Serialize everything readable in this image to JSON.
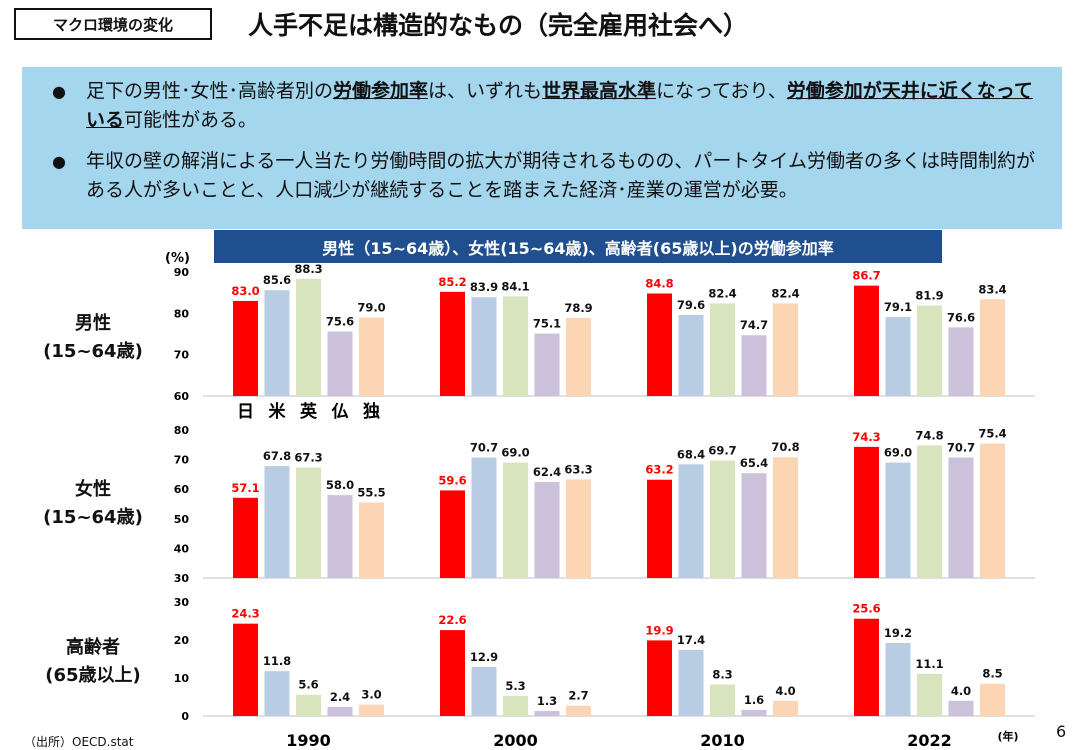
{
  "header": {
    "tag": "マクロ環境の変化",
    "title": "人手不足は構造的なもの（完全雇用社会へ）"
  },
  "summary": {
    "bullet1": {
      "t1": "足下の男性･女性･高齢者別の",
      "b1": "労働参加率",
      "t2": "は、いずれも",
      "b2": "世界最高水準",
      "t3": "になっており、",
      "b3": "労働参加が天井に近くなっている",
      "t4": "可能性がある。"
    },
    "bullet2": "年収の壁の解消による一人当たり労働時間の拡大が期待されるものの、パートタイム労働者の多くは時間制約がある人が多いことと、人口減少が継続することを踏まえた経済･産業の運営が必要。"
  },
  "footer": {
    "source": "（出所）OECD.stat",
    "page": "6"
  },
  "chart_data": {
    "type": "bar",
    "title": "男性（15~64歳）、女性(15~64歳)、高齢者(65歳以上)の労働参加率",
    "ylabel": "(%)",
    "xunit": "(年)",
    "categories": [
      "1990",
      "2000",
      "2010",
      "2022"
    ],
    "country_labels": [
      "日",
      "米",
      "英",
      "仏",
      "独"
    ],
    "colors": [
      "#ff0000",
      "#b8cce4",
      "#d7e4bd",
      "#ccc1da",
      "#fcd5b5"
    ],
    "panels": [
      {
        "label": "男性\n(15~64歳)",
        "ylim": [
          60,
          90
        ],
        "ticks": [
          60,
          70,
          80,
          90
        ],
        "values": [
          [
            83.0,
            85.6,
            88.3,
            75.6,
            79.0
          ],
          [
            85.2,
            83.9,
            84.1,
            75.1,
            78.9
          ],
          [
            84.8,
            79.6,
            82.4,
            74.7,
            82.4
          ],
          [
            86.7,
            79.1,
            81.9,
            76.6,
            83.4
          ]
        ],
        "labels": [
          [
            "83.0",
            "85.6",
            "88.3",
            "75.6",
            "79.0"
          ],
          [
            "85.2",
            "83.9",
            "84.1",
            "75.1",
            "78.9"
          ],
          [
            "84.8",
            "79.6",
            "82.4",
            "74.7",
            "82.4"
          ],
          [
            "86.7",
            "79.1",
            "81.9",
            "76.6",
            "83.4"
          ]
        ]
      },
      {
        "label": "女性\n(15~64歳)",
        "ylim": [
          30,
          80
        ],
        "ticks": [
          30,
          40,
          50,
          60,
          70,
          80
        ],
        "values": [
          [
            57.1,
            67.8,
            67.3,
            58.0,
            55.5
          ],
          [
            59.6,
            70.7,
            69.0,
            62.4,
            63.3
          ],
          [
            63.2,
            68.4,
            69.7,
            65.4,
            70.8
          ],
          [
            74.3,
            69.0,
            74.8,
            70.7,
            75.4
          ]
        ],
        "labels": [
          [
            "57.1",
            "67.8",
            "67.3",
            "58.0",
            "55.5"
          ],
          [
            "59.6",
            "70.7",
            "69.0",
            "62.4",
            "63.3"
          ],
          [
            "63.2",
            "68.4",
            "69.7",
            "65.4",
            "70.8"
          ],
          [
            "74.3",
            "69.0",
            "74.8",
            "70.7",
            "75.4"
          ]
        ]
      },
      {
        "label": "高齢者\n(65歳以上)",
        "ylim": [
          0,
          30
        ],
        "ticks": [
          0,
          10,
          20,
          30
        ],
        "values": [
          [
            24.3,
            11.8,
            5.6,
            2.4,
            3.0
          ],
          [
            22.6,
            12.9,
            5.3,
            1.3,
            2.7
          ],
          [
            19.9,
            17.4,
            8.3,
            1.6,
            4.0
          ],
          [
            25.6,
            19.2,
            11.1,
            4.0,
            8.5
          ]
        ],
        "labels": [
          [
            "24.3",
            "11.8",
            "5.6",
            "2.4",
            "3.0"
          ],
          [
            "22.6",
            "12.9",
            "5.3",
            "1.3",
            "2.7"
          ],
          [
            "19.9",
            "17.4",
            "8.3",
            "1.6",
            "4.0"
          ],
          [
            "25.6",
            "19.2",
            "11.1",
            "4.0",
            "8.5"
          ]
        ]
      }
    ]
  }
}
